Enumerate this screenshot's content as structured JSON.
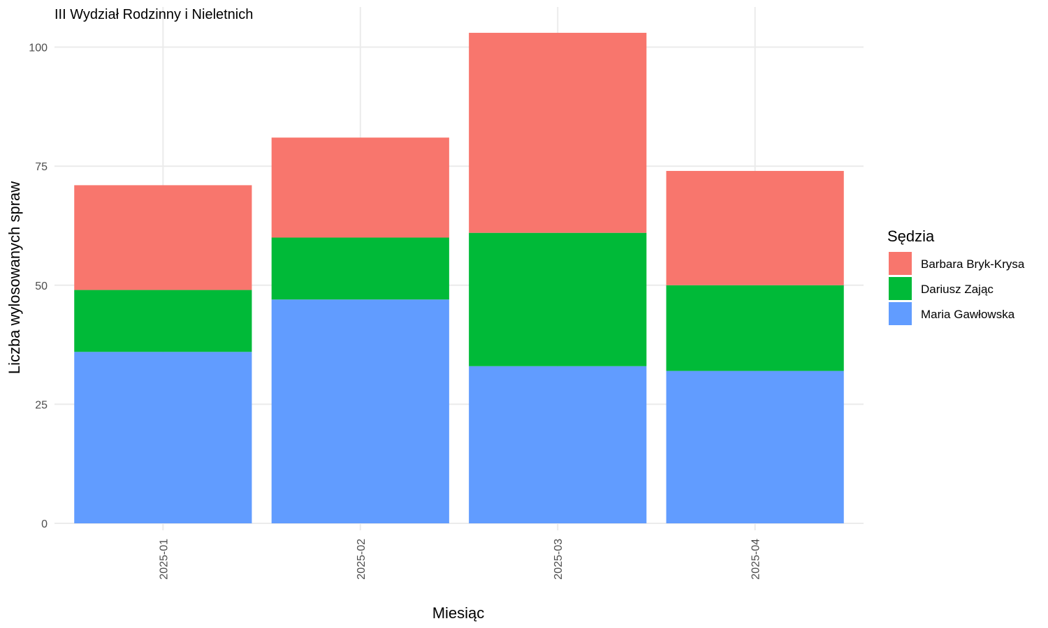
{
  "chart_data": {
    "type": "bar",
    "stacked": true,
    "title": "III Wydział Rodzinny i Nieletnich",
    "xlabel": "Miesiąc",
    "ylabel": "Liczba wylosowanych spraw",
    "categories": [
      "2025-01",
      "2025-02",
      "2025-03",
      "2025-04"
    ],
    "ylim": [
      0,
      105
    ],
    "yticks": [
      0,
      25,
      50,
      75,
      100
    ],
    "grid": true,
    "legend_title": "Sędzia",
    "legend_position": "right",
    "series": [
      {
        "name": "Maria Gawłowska",
        "color": "#619CFF",
        "values": [
          36,
          47,
          33,
          32
        ]
      },
      {
        "name": "Dariusz Zając",
        "color": "#00BA38",
        "values": [
          13,
          13,
          28,
          18
        ]
      },
      {
        "name": "Barbara Bryk-Krysa",
        "color": "#F8766D",
        "values": [
          22,
          21,
          42,
          24
        ]
      }
    ],
    "legend_order": [
      "Barbara Bryk-Krysa",
      "Dariusz Zając",
      "Maria Gawłowska"
    ]
  }
}
